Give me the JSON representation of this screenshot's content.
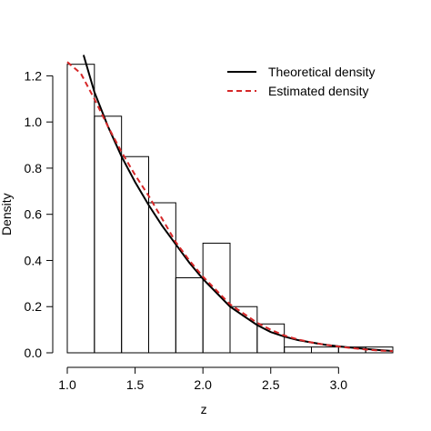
{
  "chart_data": {
    "type": "histogram",
    "title": "",
    "xlabel": "z",
    "ylabel": "Density",
    "xlim": [
      1.0,
      3.4
    ],
    "ylim": [
      0,
      1.3
    ],
    "x_ticks": [
      1.0,
      1.5,
      2.0,
      2.5,
      3.0
    ],
    "x_tick_labels": [
      "1.0",
      "1.5",
      "2.0",
      "2.5",
      "3.0"
    ],
    "y_ticks": [
      0.0,
      0.2,
      0.4,
      0.6,
      0.8,
      1.0,
      1.2
    ],
    "y_tick_labels": [
      "0.0",
      "0.2",
      "0.4",
      "0.6",
      "0.8",
      "1.0",
      "1.2"
    ],
    "grid": false,
    "legend_position": "top-right",
    "bins": [
      {
        "x0": 1.0,
        "x1": 1.2,
        "density": 1.25
      },
      {
        "x0": 1.2,
        "x1": 1.4,
        "density": 1.025
      },
      {
        "x0": 1.4,
        "x1": 1.6,
        "density": 0.85
      },
      {
        "x0": 1.6,
        "x1": 1.8,
        "density": 0.65
      },
      {
        "x0": 1.8,
        "x1": 2.0,
        "density": 0.325
      },
      {
        "x0": 2.0,
        "x1": 2.2,
        "density": 0.475
      },
      {
        "x0": 2.2,
        "x1": 2.4,
        "density": 0.2
      },
      {
        "x0": 2.4,
        "x1": 2.6,
        "density": 0.125
      },
      {
        "x0": 2.6,
        "x1": 2.8,
        "density": 0.025
      },
      {
        "x0": 2.8,
        "x1": 3.0,
        "density": 0.025
      },
      {
        "x0": 3.0,
        "x1": 3.2,
        "density": 0.025
      },
      {
        "x0": 3.2,
        "x1": 3.4,
        "density": 0.025
      }
    ],
    "series": [
      {
        "name": "Theoretical density",
        "style": "solid",
        "color": "#000000",
        "x": [
          1.12,
          1.2,
          1.3,
          1.4,
          1.5,
          1.6,
          1.7,
          1.8,
          1.9,
          2.0,
          2.1,
          2.2,
          2.3,
          2.4,
          2.5,
          2.6,
          2.7,
          2.8,
          2.9,
          3.0,
          3.1,
          3.2,
          3.3,
          3.4
        ],
        "y": [
          1.29,
          1.13,
          0.98,
          0.85,
          0.74,
          0.64,
          0.55,
          0.47,
          0.39,
          0.32,
          0.26,
          0.2,
          0.16,
          0.12,
          0.09,
          0.07,
          0.055,
          0.045,
          0.035,
          0.028,
          0.022,
          0.017,
          0.012,
          0.008
        ]
      },
      {
        "name": "Estimated density",
        "style": "dashed",
        "color": "#d62728",
        "x": [
          1.0,
          1.1,
          1.2,
          1.3,
          1.4,
          1.5,
          1.6,
          1.7,
          1.8,
          1.9,
          2.0,
          2.1,
          2.2,
          2.3,
          2.4,
          2.5,
          2.6,
          2.7,
          2.8,
          2.9,
          3.0,
          3.1,
          3.2,
          3.3,
          3.4
        ],
        "y": [
          1.26,
          1.21,
          1.1,
          0.98,
          0.87,
          0.77,
          0.68,
          0.58,
          0.48,
          0.4,
          0.33,
          0.27,
          0.21,
          0.17,
          0.13,
          0.1,
          0.075,
          0.058,
          0.045,
          0.035,
          0.027,
          0.02,
          0.014,
          0.01,
          0.007
        ]
      }
    ]
  }
}
